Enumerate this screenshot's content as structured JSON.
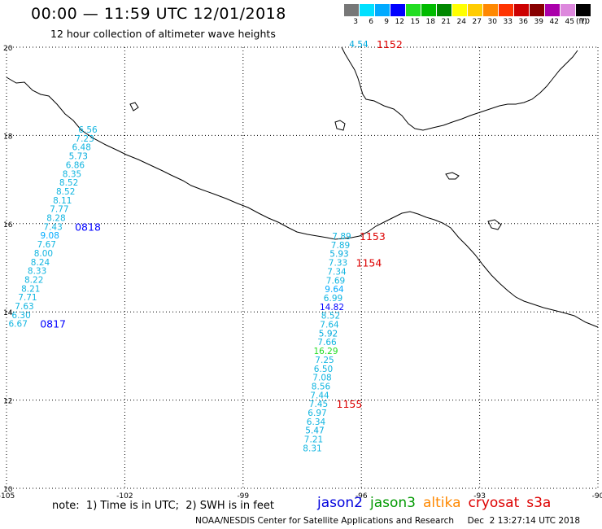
{
  "header": {
    "title": "00:00 — 11:59 UTC 12/01/2018",
    "subtitle": "12 hour collection of altimeter wave heights"
  },
  "color_scale": {
    "labels": [
      "3",
      "6",
      "9",
      "12",
      "15",
      "18",
      "21",
      "24",
      "27",
      "30",
      "33",
      "36",
      "39",
      "42",
      "45",
      "70"
    ],
    "colors": [
      "#777777",
      "#00e0ff",
      "#00aaff",
      "#0000ff",
      "#22dd22",
      "#00bb00",
      "#008800",
      "#ffff00",
      "#ffcc00",
      "#ff8800",
      "#ff3300",
      "#cc0000",
      "#880000",
      "#aa00aa",
      "#dd88dd",
      "#000000"
    ],
    "unit": "(ft)"
  },
  "map": {
    "lon_labels": [
      "-105",
      "-102",
      "-99",
      "-96",
      "-93",
      "-90"
    ],
    "lat_labels": [
      "20",
      "18",
      "16",
      "14",
      "12",
      "10"
    ],
    "lon_range": [
      -105,
      -90
    ],
    "lat_range": [
      10,
      20
    ],
    "grid": "dotted"
  },
  "tracks": [
    {
      "satellite": "jason2",
      "values": [
        "6.56",
        "7.23",
        "6.48",
        "5.73",
        "6.86",
        "8.35",
        "8.52",
        "8.52",
        "8.11",
        "7.77",
        "8.28",
        "7.43",
        "9.08",
        "7.67",
        "8.00",
        "8.24",
        "8.33",
        "8.22",
        "8.21",
        "7.71",
        "7.63",
        "6.30",
        "6.67"
      ],
      "times": [
        {
          "label": "0818",
          "color": "#0000ff"
        },
        {
          "label": "0817",
          "color": "#0000ff"
        }
      ]
    },
    {
      "satellite": "cryosat",
      "values": [
        "4.54"
      ],
      "times": [
        {
          "label": "1152",
          "color": "#dd0000"
        }
      ]
    },
    {
      "satellite": "cryosat",
      "values": [
        "7.89",
        "7.89",
        "5.93",
        "7.33",
        "7.34",
        "7.69",
        "9.64",
        "6.99",
        "14.82",
        "8.52",
        "7.64",
        "5.92",
        "7.66",
        "16.29",
        "7.25",
        "6.50",
        "7.08",
        "8.56",
        "7.44",
        "7.45",
        "6.97",
        "6.34",
        "5.47",
        "7.21",
        "8.31"
      ],
      "times": [
        {
          "label": "1153",
          "color": "#dd0000"
        },
        {
          "label": "1154",
          "color": "#dd0000"
        },
        {
          "label": "1155",
          "color": "#dd0000"
        }
      ]
    }
  ],
  "footer": {
    "note": "note:  1) Time is in UTC;  2) SWH is in feet",
    "legend": [
      {
        "name": "jason2",
        "color": "#0000dd"
      },
      {
        "name": "jason3",
        "color": "#009900"
      },
      {
        "name": "altika",
        "color": "#ff8800"
      },
      {
        "name": "cryosat",
        "color": "#dd0000"
      },
      {
        "name": "s3a",
        "color": "#dd0000"
      }
    ],
    "credit": "NOAA/NESDIS Center for Satellite Applications and Research     Dec  2 13:27:14 UTC 2018"
  }
}
